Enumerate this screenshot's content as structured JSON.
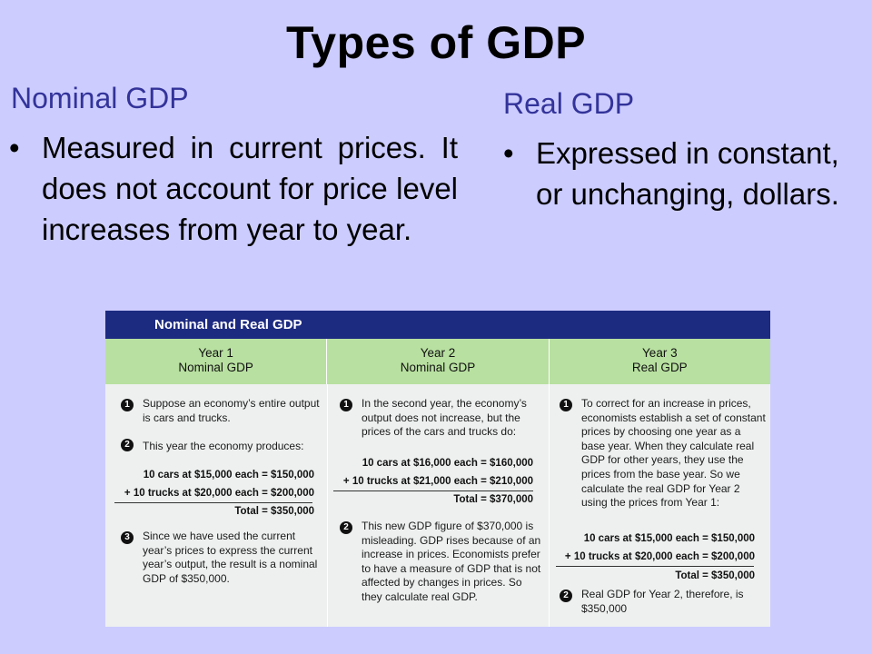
{
  "title": "Types of GDP",
  "nominal": {
    "heading": "Nominal GDP",
    "bullet": "•",
    "text": "Measured in current prices. It does not account for price level increases from year to year."
  },
  "real": {
    "heading": "Real GDP",
    "bullet": "•",
    "text": "Expressed in constant, or unchanging, dollars."
  },
  "table": {
    "title": "Nominal and Real GDP",
    "columns": [
      {
        "year": "Year 1",
        "type": "Nominal GDP"
      },
      {
        "year": "Year 2",
        "type": "Nominal GDP"
      },
      {
        "year": "Year 3",
        "type": "Real GDP"
      }
    ],
    "col1": {
      "n1": "1",
      "t1": "Suppose an economy’s entire output is cars and trucks.",
      "n2": "2",
      "t2": "This year the economy produces:",
      "cars": "10 cars at $15,000 each = $150,000",
      "trucks": "+ 10 trucks at $20,000 each = $200,000",
      "total": "Total = $350,000",
      "n3": "3",
      "t3": "Since we have used the current year’s prices to express the current year’s output, the result is a nominal GDP of $350,000."
    },
    "col2": {
      "n1": "1",
      "t1": "In the second year, the economy’s output does not increase, but the prices of the cars and trucks do:",
      "cars": "10 cars at $16,000 each = $160,000",
      "trucks": "+ 10 trucks at $21,000 each = $210,000",
      "total": "Total = $370,000",
      "n2": "2",
      "t2": "This new GDP figure of $370,000 is misleading. GDP rises because of an increase in prices. Economists prefer to have a measure of GDP that is not affected by changes in prices. So they calculate real GDP."
    },
    "col3": {
      "n1": "1",
      "t1": "To correct for an increase in prices, economists establish a set of constant prices by choosing one year as a base year. When they calculate real GDP for other years, they use the prices from the base year. So we calculate the real GDP for Year 2 using the prices from Year 1:",
      "cars": "10 cars at $15,000 each = $150,000",
      "trucks": "+ 10 trucks at $20,000 each = $200,000",
      "total": "Total = $350,000",
      "n2": "2",
      "t2": "Real GDP for Year 2, therefore, is $350,000"
    }
  }
}
